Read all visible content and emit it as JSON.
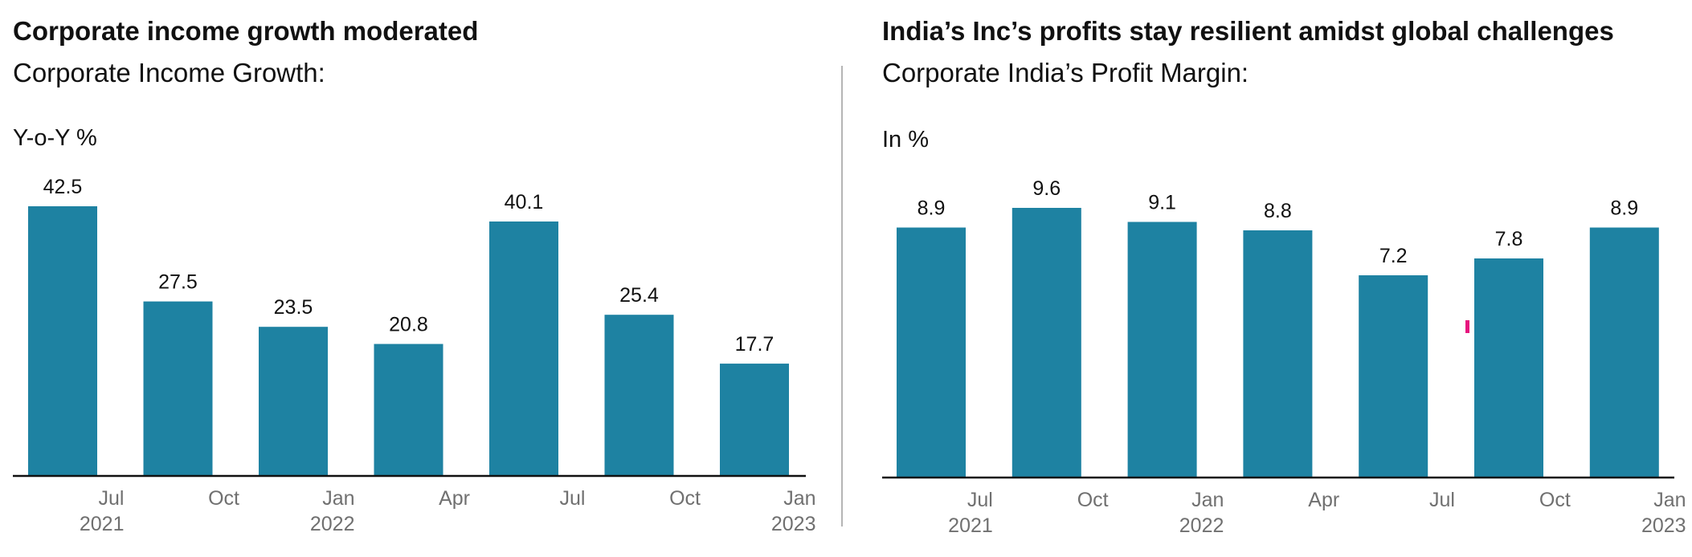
{
  "charts": [
    {
      "title": "Corporate income growth moderated",
      "subtitle": "Corporate Income Growth:",
      "unit_label": "Y-o-Y %"
    },
    {
      "title": "India’s Inc’s profits stay resilient amidst global challenges",
      "subtitle": "Corporate India’s Profit Margin:",
      "unit_label": "In %"
    }
  ],
  "colors": {
    "bar": "#1e82a2",
    "axis": "#111111",
    "tick_text": "#707070",
    "divider": "#b5b5b5",
    "marker": "#e6157e"
  },
  "chart_data": [
    {
      "type": "bar",
      "title": "Corporate income growth moderated",
      "subtitle": "Corporate Income Growth:",
      "ylabel": "Y-o-Y %",
      "categories": [
        "Jul 2021",
        "Oct 2021",
        "Jan 2022",
        "Apr 2022",
        "Jul 2022",
        "Oct 2022",
        "Jan 2023"
      ],
      "values": [
        42.5,
        27.5,
        23.5,
        20.8,
        40.1,
        25.4,
        17.7
      ],
      "x_ticks": [
        {
          "month": "Jul",
          "year": "2021"
        },
        {
          "month": "Oct",
          "year": ""
        },
        {
          "month": "Jan",
          "year": "2022"
        },
        {
          "month": "Apr",
          "year": ""
        },
        {
          "month": "Jul",
          "year": ""
        },
        {
          "month": "Oct",
          "year": ""
        },
        {
          "month": "Jan",
          "year": "2023"
        }
      ],
      "ylim": [
        0,
        42.5
      ],
      "grid": false,
      "data_labels": true
    },
    {
      "type": "bar",
      "title": "India’s Inc’s profits stay resilient amidst global challenges",
      "subtitle": "Corporate India’s Profit Margin:",
      "ylabel": "In %",
      "categories": [
        "Jul 2021",
        "Oct 2021",
        "Jan 2022",
        "Apr 2022",
        "Jul 2022",
        "Oct 2022",
        "Jan 2023"
      ],
      "values": [
        8.9,
        9.6,
        9.1,
        8.8,
        7.2,
        7.8,
        8.9
      ],
      "x_ticks": [
        {
          "month": "Jul",
          "year": "2021"
        },
        {
          "month": "Oct",
          "year": ""
        },
        {
          "month": "Jan",
          "year": "2022"
        },
        {
          "month": "Apr",
          "year": ""
        },
        {
          "month": "Jul",
          "year": ""
        },
        {
          "month": "Oct",
          "year": ""
        },
        {
          "month": "Jan",
          "year": "2023"
        }
      ],
      "ylim": [
        0,
        9.6
      ],
      "grid": false,
      "data_labels": true
    }
  ]
}
